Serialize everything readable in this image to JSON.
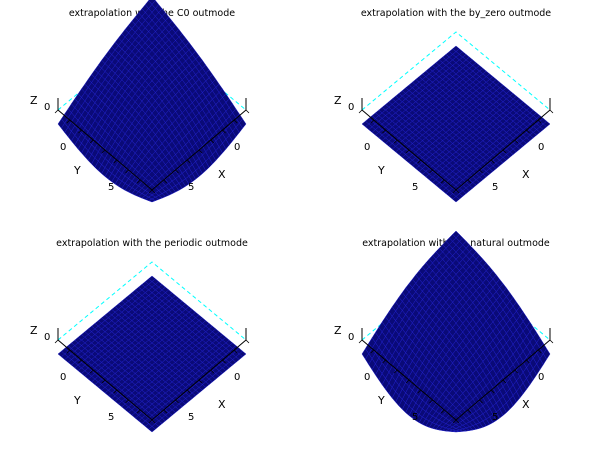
{
  "figure": {
    "background": "#ffffff"
  },
  "colors": {
    "surface_fill": "#0a0a78",
    "mesh_line": "#1e1ec8",
    "box_edge": "#000000",
    "hidden_edge": "#00ffff"
  },
  "chart_data": [
    {
      "type": "surface3d",
      "title": "extrapolation with the C0 outmode",
      "outmode": "C0",
      "xlabel": "X",
      "ylabel": "Y",
      "zlabel": "Z",
      "x_ticks": [
        "0",
        "5"
      ],
      "y_ticks": [
        "0",
        "5"
      ],
      "z_ticks": [
        "0"
      ],
      "grid_n": 28,
      "heights": {
        "left": 0.0,
        "top": 0.55,
        "right": 0.0,
        "bottom": 0.0,
        "edge_mid": {
          "tl": 0.05,
          "tr": 0.05,
          "br": -0.15,
          "bl": -0.15
        },
        "center": 0.25
      }
    },
    {
      "type": "surface3d",
      "title": "extrapolation with the by_zero outmode",
      "outmode": "by_zero",
      "xlabel": "X",
      "ylabel": "Y",
      "zlabel": "Z",
      "x_ticks": [
        "0",
        "5"
      ],
      "y_ticks": [
        "0",
        "5"
      ],
      "z_ticks": [
        "0"
      ],
      "grid_n": 28,
      "heights": {
        "left": 0.0,
        "top": 0.0,
        "right": 0.0,
        "bottom": 0.0,
        "edge_mid": {
          "tl": 0.0,
          "tr": 0.0,
          "br": 0.0,
          "bl": 0.0
        },
        "center": 0.0
      }
    },
    {
      "type": "surface3d",
      "title": "extrapolation with the periodic outmode",
      "outmode": "periodic",
      "xlabel": "X",
      "ylabel": "Y",
      "zlabel": "Z",
      "x_ticks": [
        "0",
        "5"
      ],
      "y_ticks": [
        "0",
        "5"
      ],
      "z_ticks": [
        "0"
      ],
      "grid_n": 28,
      "heights": {
        "left": 0.0,
        "top": 0.0,
        "right": 0.0,
        "bottom": 0.0,
        "edge_mid": {
          "tl": 0.0,
          "tr": 0.0,
          "br": 0.0,
          "bl": 0.0
        },
        "center": 0.0
      }
    },
    {
      "type": "surface3d",
      "title": "extrapolation with the natural outmode",
      "outmode": "natural",
      "xlabel": "X",
      "ylabel": "Y",
      "zlabel": "Z",
      "x_ticks": [
        "0",
        "5"
      ],
      "y_ticks": [
        "0",
        "5"
      ],
      "z_ticks": [
        "0"
      ],
      "grid_n": 28,
      "heights": {
        "left": 0.0,
        "top": 0.5,
        "right": 0.0,
        "bottom": 0.0,
        "edge_mid": {
          "tl": 0.1,
          "tr": 0.1,
          "br": -0.25,
          "bl": -0.25
        },
        "center": 0.15
      }
    }
  ]
}
